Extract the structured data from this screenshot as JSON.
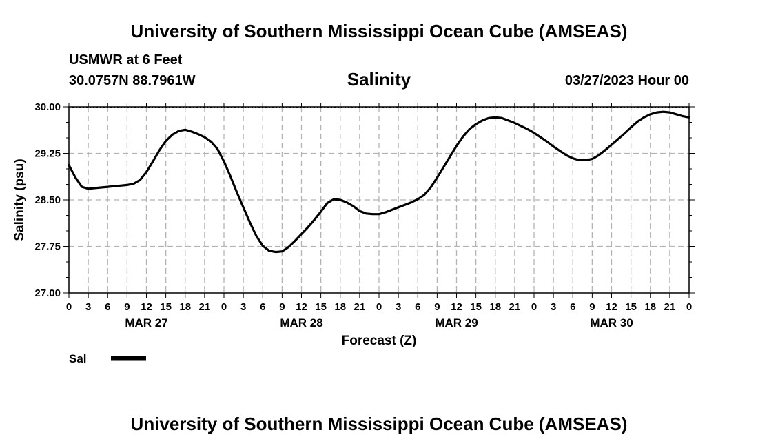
{
  "header": {
    "title": "University of Southern Mississippi Ocean Cube (AMSEAS)",
    "station": "USMWR at 6 Feet",
    "coords": "30.0757N  88.7961W",
    "datetime": "03/27/2023 Hour 00"
  },
  "footer": {
    "title": "University of Southern Mississippi Ocean Cube (AMSEAS)"
  },
  "chart_data": {
    "type": "line",
    "title": "Salinity",
    "xlabel": "Forecast (Z)",
    "ylabel": "Salinity (psu)",
    "ylim": [
      27.0,
      30.0
    ],
    "xlim": [
      0,
      96
    ],
    "y_ticks": [
      "27.00",
      "27.75",
      "28.50",
      "29.25",
      "30.00"
    ],
    "x_tick_step_hours": 3,
    "x_tick_labels": [
      "0",
      "3",
      "6",
      "9",
      "12",
      "15",
      "18",
      "21",
      "0",
      "3",
      "6",
      "9",
      "12",
      "15",
      "18",
      "21",
      "0",
      "3",
      "6",
      "9",
      "12",
      "15",
      "18",
      "21",
      "0",
      "3",
      "6",
      "9",
      "12",
      "15",
      "18",
      "21",
      "0"
    ],
    "date_labels": [
      {
        "label": "MAR 27",
        "hour": 12
      },
      {
        "label": "MAR 28",
        "hour": 36
      },
      {
        "label": "MAR 29",
        "hour": 60
      },
      {
        "label": "MAR 30",
        "hour": 84
      }
    ],
    "grid": true,
    "series": [
      {
        "name": "Sal",
        "color": "#000000",
        "x": [
          0,
          1,
          2,
          3,
          4,
          5,
          6,
          7,
          8,
          9,
          10,
          11,
          12,
          13,
          14,
          15,
          16,
          17,
          18,
          19,
          20,
          21,
          22,
          23,
          24,
          25,
          26,
          27,
          28,
          29,
          30,
          31,
          32,
          33,
          34,
          35,
          36,
          37,
          38,
          39,
          40,
          41,
          42,
          43,
          44,
          45,
          46,
          47,
          48,
          49,
          50,
          51,
          52,
          53,
          54,
          55,
          56,
          57,
          58,
          59,
          60,
          61,
          62,
          63,
          64,
          65,
          66,
          67,
          68,
          69,
          70,
          71,
          72,
          73,
          74,
          75,
          76,
          77,
          78,
          79,
          80,
          81,
          82,
          83,
          84,
          85,
          86,
          87,
          88,
          89,
          90,
          91,
          92,
          93,
          94,
          95,
          96
        ],
        "values": [
          29.06,
          28.86,
          28.71,
          28.68,
          28.69,
          28.7,
          28.71,
          28.72,
          28.73,
          28.74,
          28.76,
          28.82,
          28.95,
          29.12,
          29.3,
          29.45,
          29.55,
          29.61,
          29.63,
          29.6,
          29.56,
          29.51,
          29.44,
          29.32,
          29.12,
          28.88,
          28.62,
          28.38,
          28.14,
          27.92,
          27.76,
          27.68,
          27.66,
          27.67,
          27.74,
          27.84,
          27.95,
          28.06,
          28.18,
          28.31,
          28.45,
          28.51,
          28.5,
          28.46,
          28.4,
          28.32,
          28.28,
          28.27,
          28.27,
          28.3,
          28.34,
          28.38,
          28.42,
          28.46,
          28.51,
          28.58,
          28.7,
          28.86,
          29.03,
          29.2,
          29.37,
          29.52,
          29.64,
          29.72,
          29.78,
          29.82,
          29.83,
          29.82,
          29.78,
          29.74,
          29.69,
          29.64,
          29.58,
          29.51,
          29.44,
          29.36,
          29.29,
          29.22,
          29.17,
          29.14,
          29.14,
          29.16,
          29.22,
          29.3,
          29.39,
          29.48,
          29.57,
          29.67,
          29.76,
          29.83,
          29.88,
          29.91,
          29.92,
          29.91,
          29.88,
          29.85,
          29.83
        ]
      }
    ]
  }
}
